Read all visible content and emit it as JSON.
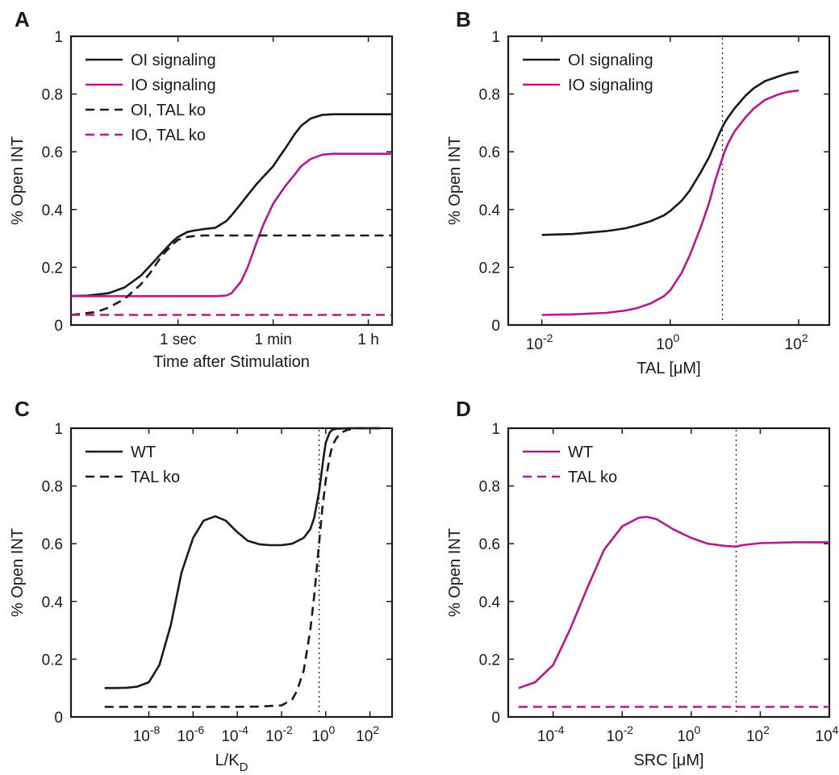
{
  "chart_data": [
    {
      "panel": "A",
      "type": "line",
      "title": "",
      "xlabel": "Time after Stimulation",
      "ylabel": "% Open INT",
      "xscale": "log",
      "x_unit": "seconds",
      "xlim": [
        0.01,
        10000
      ],
      "ylim": [
        0,
        1
      ],
      "yticks": [
        0,
        0.2,
        0.4,
        0.6,
        0.8,
        1
      ],
      "ytick_labels": [
        "0",
        "0.2",
        "0.4",
        "0.6",
        "0.8",
        "1"
      ],
      "xticks": [
        1,
        60,
        3600
      ],
      "xtick_labels": [
        "1 sec",
        "1 min",
        "1 h"
      ],
      "legend_position": "top-left",
      "grid": false,
      "series": [
        {
          "name": "OI signaling",
          "color": "#1a1a1a",
          "dash": "solid",
          "x": [
            0.01,
            0.02,
            0.05,
            0.1,
            0.2,
            0.3,
            0.5,
            0.8,
            1,
            1.5,
            2,
            3,
            5,
            8,
            10,
            15,
            20,
            30,
            40,
            60,
            80,
            100,
            150,
            200,
            300,
            500,
            800,
            1000,
            2000,
            5000,
            10000
          ],
          "y": [
            0.1,
            0.102,
            0.11,
            0.13,
            0.17,
            0.205,
            0.25,
            0.29,
            0.305,
            0.322,
            0.327,
            0.332,
            0.337,
            0.36,
            0.38,
            0.42,
            0.45,
            0.49,
            0.515,
            0.55,
            0.585,
            0.61,
            0.66,
            0.69,
            0.715,
            0.728,
            0.73,
            0.73,
            0.73,
            0.73,
            0.73
          ]
        },
        {
          "name": "IO signaling",
          "color": "#b5198b",
          "dash": "solid",
          "x": [
            0.01,
            1,
            5,
            8,
            10,
            15,
            20,
            30,
            40,
            60,
            100,
            150,
            200,
            300,
            500,
            800,
            1000,
            2000,
            5000,
            10000
          ],
          "y": [
            0.1,
            0.1,
            0.1,
            0.102,
            0.11,
            0.15,
            0.2,
            0.29,
            0.35,
            0.42,
            0.48,
            0.52,
            0.55,
            0.575,
            0.59,
            0.593,
            0.593,
            0.593,
            0.593,
            0.593
          ]
        },
        {
          "name": "OI, TAL ko",
          "color": "#1a1a1a",
          "dash": "dashed",
          "x": [
            0.01,
            0.03,
            0.05,
            0.1,
            0.2,
            0.3,
            0.5,
            0.8,
            1,
            1.5,
            2,
            3,
            5,
            10,
            100,
            1000,
            10000
          ],
          "y": [
            0.035,
            0.045,
            0.06,
            0.09,
            0.14,
            0.18,
            0.24,
            0.28,
            0.295,
            0.305,
            0.308,
            0.31,
            0.31,
            0.31,
            0.31,
            0.31,
            0.31
          ]
        },
        {
          "name": "IO, TAL ko",
          "color": "#b5198b",
          "dash": "dashed",
          "x": [
            0.01,
            10000
          ],
          "y": [
            0.035,
            0.035
          ]
        }
      ]
    },
    {
      "panel": "B",
      "type": "line",
      "title": "",
      "xlabel": "TAL [μM]",
      "ylabel": "% Open INT",
      "xscale": "log",
      "xlim": [
        0.003,
        300
      ],
      "ylim": [
        0,
        1
      ],
      "yticks": [
        0,
        0.2,
        0.4,
        0.6,
        0.8,
        1
      ],
      "ytick_labels": [
        "0",
        "0.2",
        "0.4",
        "0.6",
        "0.8",
        "1"
      ],
      "xtick_exponents": [
        -2,
        0,
        2
      ],
      "xtick_base": "10",
      "reference_line_x": 6.5,
      "legend_position": "top-left",
      "grid": false,
      "series": [
        {
          "name": "OI signaling",
          "color": "#1a1a1a",
          "dash": "solid",
          "x": [
            0.01,
            0.03,
            0.1,
            0.2,
            0.3,
            0.5,
            0.8,
            1,
            1.5,
            2,
            3,
            4,
            5,
            6,
            7,
            8,
            10,
            15,
            20,
            30,
            50,
            70,
            100
          ],
          "y": [
            0.312,
            0.315,
            0.325,
            0.335,
            0.345,
            0.36,
            0.38,
            0.395,
            0.43,
            0.465,
            0.53,
            0.58,
            0.63,
            0.67,
            0.7,
            0.72,
            0.75,
            0.795,
            0.82,
            0.845,
            0.862,
            0.872,
            0.878
          ]
        },
        {
          "name": "IO signaling",
          "color": "#b5198b",
          "dash": "solid",
          "x": [
            0.01,
            0.03,
            0.1,
            0.2,
            0.3,
            0.5,
            0.8,
            1,
            1.5,
            2,
            3,
            4,
            5,
            6,
            7,
            8,
            10,
            15,
            20,
            30,
            50,
            70,
            100
          ],
          "y": [
            0.035,
            0.037,
            0.042,
            0.05,
            0.058,
            0.075,
            0.1,
            0.12,
            0.18,
            0.24,
            0.34,
            0.42,
            0.5,
            0.555,
            0.6,
            0.63,
            0.67,
            0.72,
            0.75,
            0.78,
            0.8,
            0.808,
            0.812
          ]
        }
      ]
    },
    {
      "panel": "C",
      "type": "line",
      "title": "",
      "xlabel": "L/K",
      "xlabel_subscript": "D",
      "ylabel": "% Open INT",
      "xscale": "log",
      "xlim": [
        3e-12,
        1000
      ],
      "ylim": [
        0,
        1
      ],
      "yticks": [
        0,
        0.2,
        0.4,
        0.6,
        0.8,
        1
      ],
      "ytick_labels": [
        "0",
        "0.2",
        "0.4",
        "0.6",
        "0.8",
        "1"
      ],
      "xtick_exponents": [
        -8,
        -6,
        -4,
        -2,
        0,
        2
      ],
      "xtick_base": "10",
      "reference_line_x": 0.5,
      "legend_position": "top-left",
      "grid": false,
      "series": [
        {
          "name": "WT",
          "color": "#1a1a1a",
          "dash": "solid",
          "x": [
            1e-10,
            3e-10,
            1e-09,
            3e-09,
            1e-08,
            3e-08,
            1e-07,
            3e-07,
            1e-06,
            3e-06,
            1e-05,
            3e-05,
            0.0001,
            0.0003,
            0.001,
            0.003,
            0.01,
            0.03,
            0.1,
            0.2,
            0.3,
            0.5,
            0.8,
            1,
            1.5,
            2,
            3,
            10,
            100,
            300
          ],
          "y": [
            0.1,
            0.1,
            0.101,
            0.105,
            0.12,
            0.18,
            0.32,
            0.5,
            0.62,
            0.68,
            0.695,
            0.68,
            0.64,
            0.61,
            0.598,
            0.595,
            0.595,
            0.6,
            0.62,
            0.65,
            0.69,
            0.78,
            0.9,
            0.95,
            0.985,
            0.995,
            0.998,
            1,
            1,
            1
          ]
        },
        {
          "name": "TAL ko",
          "color": "#1a1a1a",
          "dash": "dashed",
          "x": [
            1e-10,
            1e-06,
            0.0001,
            0.001,
            0.01,
            0.03,
            0.05,
            0.1,
            0.2,
            0.3,
            0.5,
            0.7,
            1,
            1.5,
            2,
            3,
            5,
            10,
            30,
            100,
            300
          ],
          "y": [
            0.035,
            0.035,
            0.035,
            0.036,
            0.04,
            0.06,
            0.09,
            0.16,
            0.3,
            0.42,
            0.6,
            0.72,
            0.82,
            0.9,
            0.94,
            0.965,
            0.985,
            0.995,
            1,
            1,
            1
          ]
        }
      ]
    },
    {
      "panel": "D",
      "type": "line",
      "title": "",
      "xlabel": "SRC [μM]",
      "ylabel": "% Open INT",
      "xscale": "log",
      "xlim": [
        5e-06,
        10000
      ],
      "ylim": [
        0,
        1
      ],
      "yticks": [
        0,
        0.2,
        0.4,
        0.6,
        0.8,
        1
      ],
      "ytick_labels": [
        "0",
        "0.2",
        "0.4",
        "0.6",
        "0.8",
        "1"
      ],
      "xtick_exponents": [
        -4,
        -2,
        0,
        2,
        4
      ],
      "xtick_base": "10",
      "reference_line_x": 20,
      "legend_position": "top-left",
      "grid": false,
      "series": [
        {
          "name": "WT",
          "color": "#b5198b",
          "dash": "solid",
          "x": [
            1e-05,
            3e-05,
            0.0001,
            0.0003,
            0.001,
            0.003,
            0.01,
            0.03,
            0.05,
            0.1,
            0.3,
            1,
            3,
            10,
            20,
            30,
            100,
            1000,
            10000
          ],
          "y": [
            0.1,
            0.12,
            0.18,
            0.3,
            0.45,
            0.58,
            0.66,
            0.69,
            0.693,
            0.685,
            0.65,
            0.62,
            0.6,
            0.592,
            0.59,
            0.595,
            0.602,
            0.605,
            0.605
          ]
        },
        {
          "name": "TAL ko",
          "color": "#b5198b",
          "dash": "dashed",
          "x": [
            1e-05,
            10000
          ],
          "y": [
            0.035,
            0.035
          ]
        }
      ]
    }
  ]
}
